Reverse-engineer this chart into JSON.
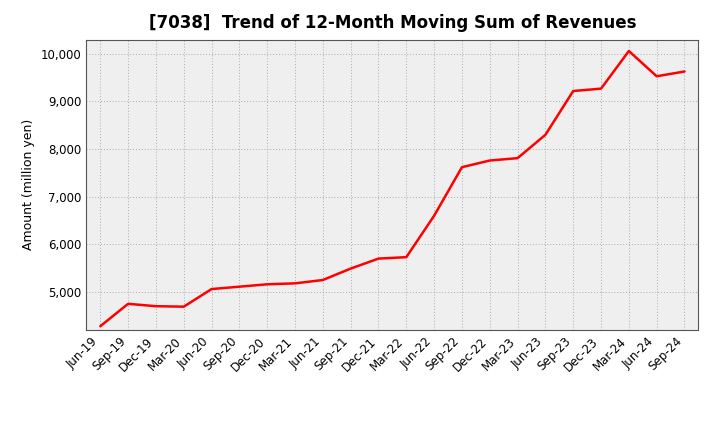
{
  "title": "[7038]  Trend of 12-Month Moving Sum of Revenues",
  "ylabel": "Amount (million yen)",
  "line_color": "#FF0000",
  "background_color": "#FFFFFF",
  "plot_bg_color": "#EFEFEF",
  "grid_color": "#999999",
  "ylim": [
    4200,
    10300
  ],
  "yticks": [
    5000,
    6000,
    7000,
    8000,
    9000,
    10000
  ],
  "x_labels": [
    "Jun-19",
    "Sep-19",
    "Dec-19",
    "Mar-20",
    "Jun-20",
    "Sep-20",
    "Dec-20",
    "Mar-21",
    "Jun-21",
    "Sep-21",
    "Dec-21",
    "Mar-22",
    "Jun-22",
    "Sep-22",
    "Dec-22",
    "Mar-23",
    "Jun-23",
    "Sep-23",
    "Dec-23",
    "Mar-24",
    "Jun-24",
    "Sep-24"
  ],
  "values": [
    4280,
    4750,
    4700,
    4690,
    5060,
    5110,
    5160,
    5180,
    5250,
    5490,
    5700,
    5730,
    6600,
    7620,
    7760,
    7810,
    8300,
    9220,
    9270,
    10060,
    9530,
    9630
  ],
  "title_fontsize": 12,
  "axis_label_fontsize": 9,
  "tick_fontsize": 8.5,
  "linewidth": 1.8
}
